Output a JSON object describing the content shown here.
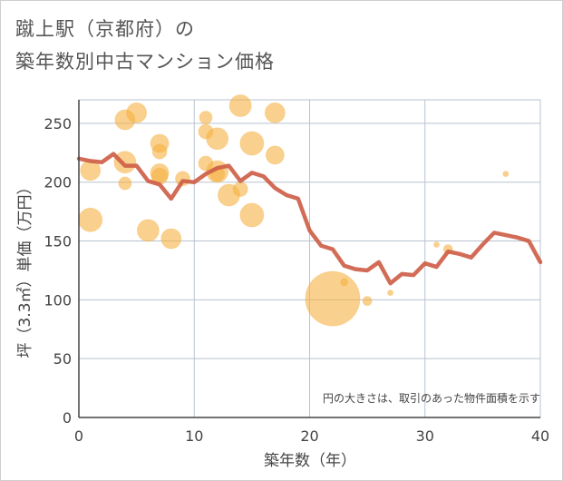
{
  "title_line1": "蹴上駅（京都府）の",
  "title_line2": "築年数別中古マンション価格",
  "chart_data": {
    "type": "scatter",
    "title": "蹴上駅（京都府）の築年数別中古マンション価格",
    "xlabel": "築年数（年）",
    "ylabel": "坪（3.3㎡）単価（万円）",
    "xlim": [
      0,
      40
    ],
    "ylim": [
      0,
      270
    ],
    "xticks": [
      0,
      10,
      20,
      30,
      40
    ],
    "yticks": [
      0,
      50,
      100,
      150,
      200,
      250
    ],
    "grid": true,
    "annotation": "円の大きさは、取引のあった物件面積を示す",
    "colors": {
      "bubble": "#f5b041",
      "line": "#cd5c45",
      "grid": "#b9c3cf",
      "axis": "#444444"
    },
    "bubbles": [
      {
        "x": 1,
        "y": 168,
        "size": 13
      },
      {
        "x": 1,
        "y": 210,
        "size": 11
      },
      {
        "x": 4,
        "y": 253,
        "size": 11
      },
      {
        "x": 4,
        "y": 217,
        "size": 12
      },
      {
        "x": 4,
        "y": 199,
        "size": 7
      },
      {
        "x": 5,
        "y": 259,
        "size": 11
      },
      {
        "x": 6,
        "y": 159,
        "size": 12
      },
      {
        "x": 7,
        "y": 233,
        "size": 10
      },
      {
        "x": 7,
        "y": 226,
        "size": 8
      },
      {
        "x": 7,
        "y": 208,
        "size": 10
      },
      {
        "x": 7,
        "y": 205,
        "size": 9
      },
      {
        "x": 8,
        "y": 152,
        "size": 11
      },
      {
        "x": 9,
        "y": 203,
        "size": 8
      },
      {
        "x": 11,
        "y": 255,
        "size": 7
      },
      {
        "x": 11,
        "y": 243,
        "size": 8
      },
      {
        "x": 11,
        "y": 216,
        "size": 8
      },
      {
        "x": 12,
        "y": 237,
        "size": 12
      },
      {
        "x": 12,
        "y": 209,
        "size": 12
      },
      {
        "x": 12,
        "y": 207,
        "size": 8
      },
      {
        "x": 13,
        "y": 189,
        "size": 12
      },
      {
        "x": 14,
        "y": 265,
        "size": 12
      },
      {
        "x": 14,
        "y": 194,
        "size": 8
      },
      {
        "x": 15,
        "y": 233,
        "size": 13
      },
      {
        "x": 15,
        "y": 172,
        "size": 13
      },
      {
        "x": 17,
        "y": 259,
        "size": 11
      },
      {
        "x": 17,
        "y": 223,
        "size": 10
      },
      {
        "x": 22,
        "y": 101,
        "size": 30
      },
      {
        "x": 23,
        "y": 115,
        "size": 4
      },
      {
        "x": 25,
        "y": 99,
        "size": 5
      },
      {
        "x": 27,
        "y": 106,
        "size": 3
      },
      {
        "x": 31,
        "y": 147,
        "size": 3
      },
      {
        "x": 32,
        "y": 143,
        "size": 5
      },
      {
        "x": 37,
        "y": 207,
        "size": 3
      }
    ],
    "trend": {
      "x": [
        0,
        1,
        2,
        3,
        4,
        5,
        6,
        7,
        8,
        9,
        10,
        11,
        12,
        13,
        14,
        15,
        16,
        17,
        18,
        19,
        20,
        21,
        22,
        23,
        24,
        25,
        26,
        27,
        28,
        29,
        30,
        31,
        32,
        33,
        34,
        35,
        36,
        37,
        38,
        39,
        40
      ],
      "y": [
        220,
        218,
        217,
        224,
        214,
        214,
        201,
        198,
        186,
        201,
        200,
        207,
        212,
        214,
        201,
        208,
        205,
        195,
        189,
        186,
        159,
        146,
        143,
        129,
        126,
        125,
        132,
        114,
        122,
        121,
        131,
        128,
        141,
        139,
        136,
        147,
        157,
        155,
        153,
        150,
        132
      ]
    }
  }
}
